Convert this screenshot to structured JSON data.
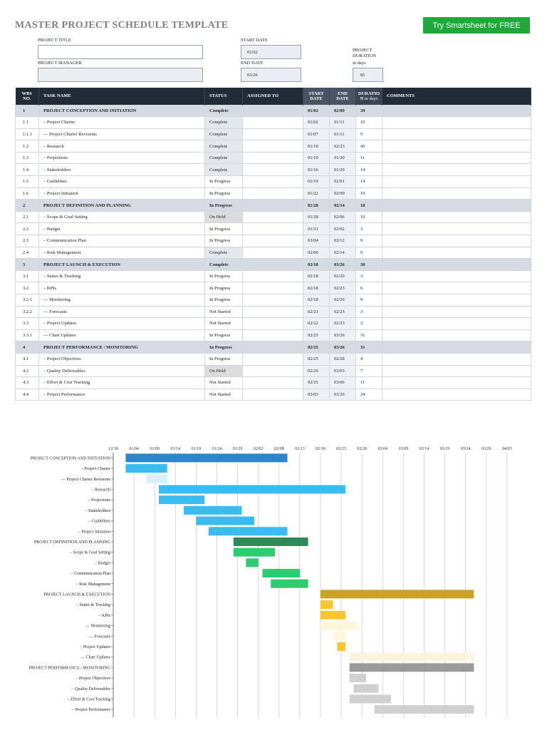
{
  "header": {
    "title": "MASTER PROJECT SCHEDULE TEMPLATE",
    "cta": "Try Smartsheet for FREE"
  },
  "form": {
    "project_title_label": "PROJECT TITLE",
    "project_title_value": "",
    "project_manager_label": "PROJECT MANAGER",
    "project_manager_value": "",
    "start_date_label": "START DATE",
    "start_date_value": "01/02",
    "end_date_label": "END DATE",
    "end_date_value": "03/26",
    "duration_label_1": "PROJECT",
    "duration_label_2": "DURATION",
    "duration_label_3": "in days",
    "duration_value": "85"
  },
  "table": {
    "headers": {
      "wbs_1": "WBS",
      "wbs_2": "NO.",
      "task": "TASK NAME",
      "status": "STATUS",
      "assigned": "ASSIGNED TO",
      "start_1": "START",
      "start_2": "DATE",
      "end_1": "END",
      "end_2": "DATE",
      "dur_1": "DURATIO",
      "dur_2": "N",
      "dur_3": "in days",
      "comments": "COMMENTS"
    },
    "rows": [
      {
        "wbs": "1",
        "task": "PROJECT CONCEPTION AND INITIATION",
        "status": "Complete",
        "assigned": "",
        "start": "01/02",
        "end": "02/09",
        "duration": "39",
        "comments": "",
        "phase": true
      },
      {
        "wbs": "1.1",
        "task": "– Project Charter",
        "status": "Complete",
        "assigned": "",
        "start": "01/02",
        "end": "01/11",
        "duration": "10",
        "comments": "",
        "phase": false
      },
      {
        "wbs": "1.1.1",
        "task": "–– Project Charter Revisions",
        "status": "Complete",
        "assigned": "",
        "start": "01/07",
        "end": "01/11",
        "duration": "5",
        "comments": "",
        "phase": false
      },
      {
        "wbs": "1.2",
        "task": "– Research",
        "status": "Complete",
        "assigned": "",
        "start": "01/10",
        "end": "02/23",
        "duration": "45",
        "comments": "",
        "phase": false
      },
      {
        "wbs": "1.3",
        "task": "– Projections",
        "status": "Complete",
        "assigned": "",
        "start": "01/10",
        "end": "01/20",
        "duration": "11",
        "comments": "",
        "phase": false
      },
      {
        "wbs": "1.4",
        "task": "– Stakeholders",
        "status": "Complete",
        "assigned": "",
        "start": "01/16",
        "end": "01/29",
        "duration": "14",
        "comments": "",
        "phase": false
      },
      {
        "wbs": "1.5",
        "task": "– Guidelines",
        "status": "In Progress",
        "assigned": "",
        "start": "01/19",
        "end": "02/01",
        "duration": "14",
        "comments": "",
        "phase": false
      },
      {
        "wbs": "1.6",
        "task": "– Project Initiation",
        "status": "In Progress",
        "assigned": "",
        "start": "01/22",
        "end": "02/09",
        "duration": "19",
        "comments": "",
        "phase": false
      },
      {
        "wbs": "2",
        "task": "PROJECT DEFINITION AND PLANNING",
        "status": "In Progress",
        "assigned": "",
        "start": "01/28",
        "end": "02/14",
        "duration": "18",
        "comments": "",
        "phase": true
      },
      {
        "wbs": "2.1",
        "task": "– Scope & Goal Setting",
        "status": "On Hold",
        "assigned": "",
        "start": "01/28",
        "end": "02/06",
        "duration": "10",
        "comments": "",
        "phase": false
      },
      {
        "wbs": "2.2",
        "task": "– Budget",
        "status": "In Progress",
        "assigned": "",
        "start": "01/31",
        "end": "02/02",
        "duration": "3",
        "comments": "",
        "phase": false
      },
      {
        "wbs": "2.3",
        "task": "– Communication Plan",
        "status": "In Progress",
        "assigned": "",
        "start": "02/04",
        "end": "02/12",
        "duration": "9",
        "comments": "",
        "phase": false
      },
      {
        "wbs": "2.4",
        "task": "– Risk Management",
        "status": "Complete",
        "assigned": "",
        "start": "02/06",
        "end": "02/14",
        "duration": "9",
        "comments": "",
        "phase": false
      },
      {
        "wbs": "3",
        "task": "PROJECT LAUNCH & EXECUTION",
        "status": "Complete",
        "assigned": "",
        "start": "02/18",
        "end": "03/26",
        "duration": "38",
        "comments": "",
        "phase": true
      },
      {
        "wbs": "3.1",
        "task": "– Status & Tracking",
        "status": "In Progress",
        "assigned": "",
        "start": "02/18",
        "end": "02/20",
        "duration": "3",
        "comments": "",
        "phase": false
      },
      {
        "wbs": "3.2",
        "task": "– KPIs",
        "status": "In Progress",
        "assigned": "",
        "start": "02/18",
        "end": "02/23",
        "duration": "6",
        "comments": "",
        "phase": false
      },
      {
        "wbs": "3.2.1",
        "task": "–– Monitoring",
        "status": "In Progress",
        "assigned": "",
        "start": "02/18",
        "end": "02/26",
        "duration": "9",
        "comments": "",
        "phase": false
      },
      {
        "wbs": "3.2.2",
        "task": "–– Forecasts",
        "status": "Not Started",
        "assigned": "",
        "start": "02/21",
        "end": "02/23",
        "duration": "3",
        "comments": "",
        "phase": false
      },
      {
        "wbs": "3.3",
        "task": "– Project Updates",
        "status": "Not Started",
        "assigned": "",
        "start": "02/22",
        "end": "02/23",
        "duration": "2",
        "comments": "",
        "phase": false
      },
      {
        "wbs": "3.3.1",
        "task": "–– Chart Updates",
        "status": "In Progress",
        "assigned": "",
        "start": "02/25",
        "end": "03/26",
        "duration": "31",
        "comments": "",
        "phase": false
      },
      {
        "wbs": "4",
        "task": "PROJECT PERFORMANCE / MONITORING",
        "status": "In Progress",
        "assigned": "",
        "start": "02/25",
        "end": "03/26",
        "duration": "31",
        "comments": "",
        "phase": true
      },
      {
        "wbs": "4.1",
        "task": "– Project Objectives",
        "status": "In Progress",
        "assigned": "",
        "start": "02/25",
        "end": "02/28",
        "duration": "4",
        "comments": "",
        "phase": false
      },
      {
        "wbs": "4.2",
        "task": "– Quality Deliverables",
        "status": "On Hold",
        "assigned": "",
        "start": "02/26",
        "end": "03/03",
        "duration": "7",
        "comments": "",
        "phase": false
      },
      {
        "wbs": "4.3",
        "task": "– Effort & Cost Tracking",
        "status": "Not Started",
        "assigned": "",
        "start": "02/25",
        "end": "03/06",
        "duration": "11",
        "comments": "",
        "phase": false
      },
      {
        "wbs": "4.4",
        "task": "– Project Performance",
        "status": "Not Started",
        "assigned": "",
        "start": "03/03",
        "end": "03/26",
        "duration": "24",
        "comments": "",
        "phase": false
      }
    ]
  },
  "colors": {
    "phase1": "#2e86c9",
    "task1": "#3bbcf0",
    "task1_light": "#d7f1fc",
    "phase2": "#2e8b57",
    "task2": "#2ecc71",
    "phase3": "#c9a227",
    "task3": "#f7c631",
    "task3_light": "#fff6dc",
    "phase4": "#9a9a9a",
    "task4": "#d0d0d0",
    "task4_light": "#fbf3dd"
  },
  "chart_data": {
    "type": "gantt",
    "x_ticks": [
      "12/30",
      "01/04",
      "01/09",
      "01/14",
      "01/19",
      "01/24",
      "01/29",
      "02/03",
      "02/08",
      "02/13",
      "02/18",
      "02/23",
      "02/28",
      "03/04",
      "03/09",
      "03/14",
      "03/19",
      "03/24",
      "03/29",
      "04/03"
    ],
    "tasks": [
      {
        "label": "PROJECT CONCEPTION AND INITIATION",
        "start": "01/02",
        "end": "02/09",
        "color": "phase1"
      },
      {
        "label": "– Project Charter",
        "start": "01/02",
        "end": "01/11",
        "color": "task1"
      },
      {
        "label": "–– Project Charter Revisions",
        "start": "01/07",
        "end": "01/11",
        "color": "task1_light"
      },
      {
        "label": "– Research",
        "start": "01/10",
        "end": "02/23",
        "color": "task1"
      },
      {
        "label": "– Projections",
        "start": "01/10",
        "end": "01/20",
        "color": "task1"
      },
      {
        "label": "– Stakeholders",
        "start": "01/16",
        "end": "01/29",
        "color": "task1"
      },
      {
        "label": "– Guidelines",
        "start": "01/19",
        "end": "02/01",
        "color": "task1"
      },
      {
        "label": "– Project Initiation",
        "start": "01/22",
        "end": "02/09",
        "color": "task1"
      },
      {
        "label": "PROJECT DEFINITION AND PLANNING",
        "start": "01/28",
        "end": "02/14",
        "color": "phase2"
      },
      {
        "label": "– Scope & Goal Setting",
        "start": "01/28",
        "end": "02/06",
        "color": "task2"
      },
      {
        "label": "– Budget",
        "start": "01/31",
        "end": "02/02",
        "color": "task2"
      },
      {
        "label": "– Communication Plan",
        "start": "02/04",
        "end": "02/12",
        "color": "task2"
      },
      {
        "label": "– Risk Management",
        "start": "02/06",
        "end": "02/14",
        "color": "task2"
      },
      {
        "label": "PROJECT LAUNCH & EXECUTION",
        "start": "02/18",
        "end": "03/26",
        "color": "phase3"
      },
      {
        "label": "– Status & Tracking",
        "start": "02/18",
        "end": "02/20",
        "color": "task3"
      },
      {
        "label": "– KPIs",
        "start": "02/18",
        "end": "02/23",
        "color": "task3"
      },
      {
        "label": "–– Monitoring",
        "start": "02/18",
        "end": "02/26",
        "color": "task3_light"
      },
      {
        "label": "–– Forecasts",
        "start": "02/21",
        "end": "02/23",
        "color": "task3_light"
      },
      {
        "label": "– Project Updates",
        "start": "02/22",
        "end": "02/23",
        "color": "task3"
      },
      {
        "label": "–– Chart Updates",
        "start": "02/25",
        "end": "03/26",
        "color": "task4_light"
      },
      {
        "label": "PROJECT PERFORMANCE / MONITORING",
        "start": "02/25",
        "end": "03/26",
        "color": "phase4"
      },
      {
        "label": "– Project Objectives",
        "start": "02/25",
        "end": "02/28",
        "color": "task4"
      },
      {
        "label": "– Quality Deliverables",
        "start": "02/26",
        "end": "03/03",
        "color": "task4"
      },
      {
        "label": "– Effort & Cost Tracking",
        "start": "02/25",
        "end": "03/06",
        "color": "task4"
      },
      {
        "label": "– Project Performance",
        "start": "03/03",
        "end": "03/26",
        "color": "task4"
      }
    ]
  }
}
